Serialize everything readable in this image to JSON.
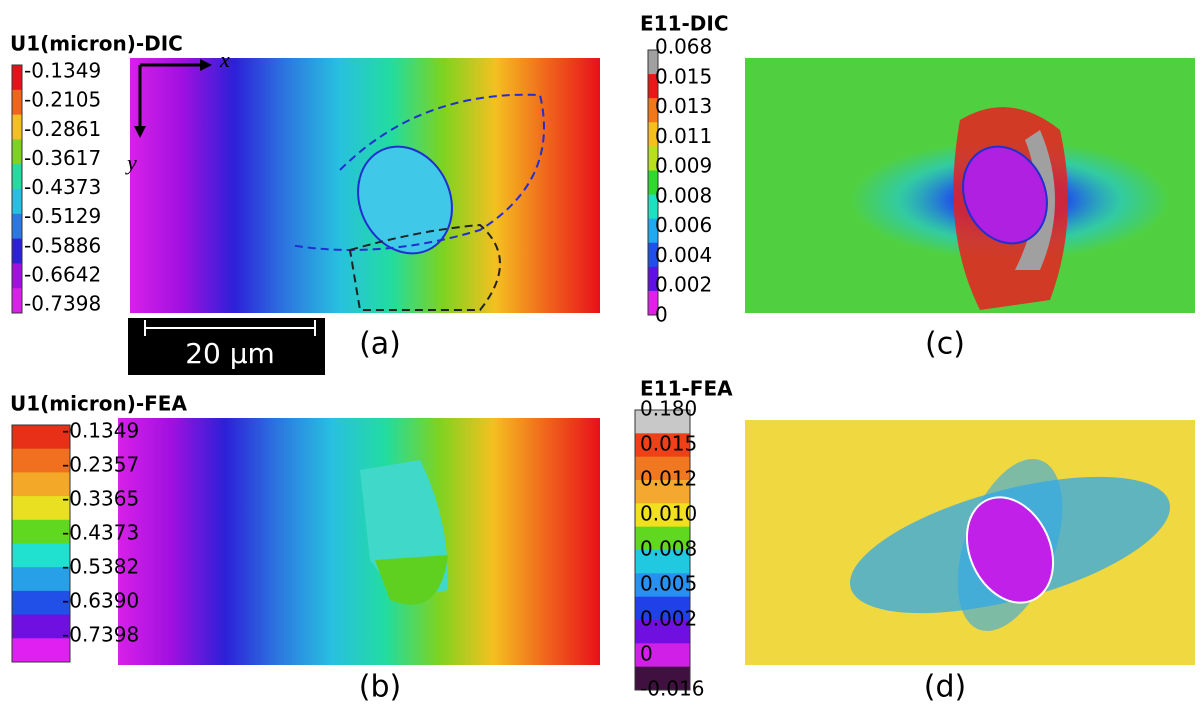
{
  "panels": [
    {
      "title": "U1(micron)-DIC",
      "label": "(a)",
      "colorbar": {
        "labels": [
          "-0.1349",
          "-0.2105",
          "-0.2861",
          "-0.3617",
          "-0.4373",
          "-0.5129",
          "-0.5886",
          "-0.6642",
          "-0.7398"
        ],
        "colors": [
          "#e8101a",
          "#f0641c",
          "#f4c020",
          "#7ed320",
          "#22dca0",
          "#28c0e0",
          "#2c78e0",
          "#2c20d8",
          "#a010e0",
          "#d820e8"
        ]
      }
    },
    {
      "title": "E11-DIC",
      "label": "(c)",
      "colorbar": {
        "labels": [
          "0.068",
          "0.015",
          "0.013",
          "0.011",
          "0.009",
          "0.008",
          "0.006",
          "0.004",
          "0.002",
          "0"
        ],
        "colors": [
          "#a0a0a0",
          "#e81818",
          "#f07818",
          "#f4c020",
          "#b8e020",
          "#30d830",
          "#20e0c0",
          "#20a8f0",
          "#2050e8",
          "#6010e0",
          "#e020e8"
        ]
      }
    },
    {
      "title": "U1(micron)-FEA",
      "label": "(b)",
      "colorbar": {
        "labels": [
          "-0.1349",
          "-0.2357",
          "-0.3365",
          "-0.4373",
          "-0.5382",
          "-0.6390",
          "-0.7398"
        ],
        "colors": [
          "#e83018",
          "#f07020",
          "#f4a828",
          "#e8e020",
          "#60d820",
          "#20e0d0",
          "#28a0e8",
          "#2050e8",
          "#7010e0",
          "#e020f0"
        ]
      }
    },
    {
      "title": "E11-FEA",
      "label": "(d)",
      "colorbar": {
        "labels": [
          "0.180",
          "0.015",
          "0.012",
          "0.010",
          "0.008",
          "0.005",
          "0.002",
          "0",
          "-0.016"
        ],
        "colors": [
          "#c8c8c8",
          "#f04018",
          "#f07820",
          "#f4a830",
          "#f0e020",
          "#60d820",
          "#20c8e0",
          "#2890f0",
          "#2040e8",
          "#7010e0",
          "#d020e8",
          "#401040"
        ]
      }
    }
  ],
  "scale_bar": "20 µm",
  "axes": {
    "x": "x",
    "y": "y"
  }
}
